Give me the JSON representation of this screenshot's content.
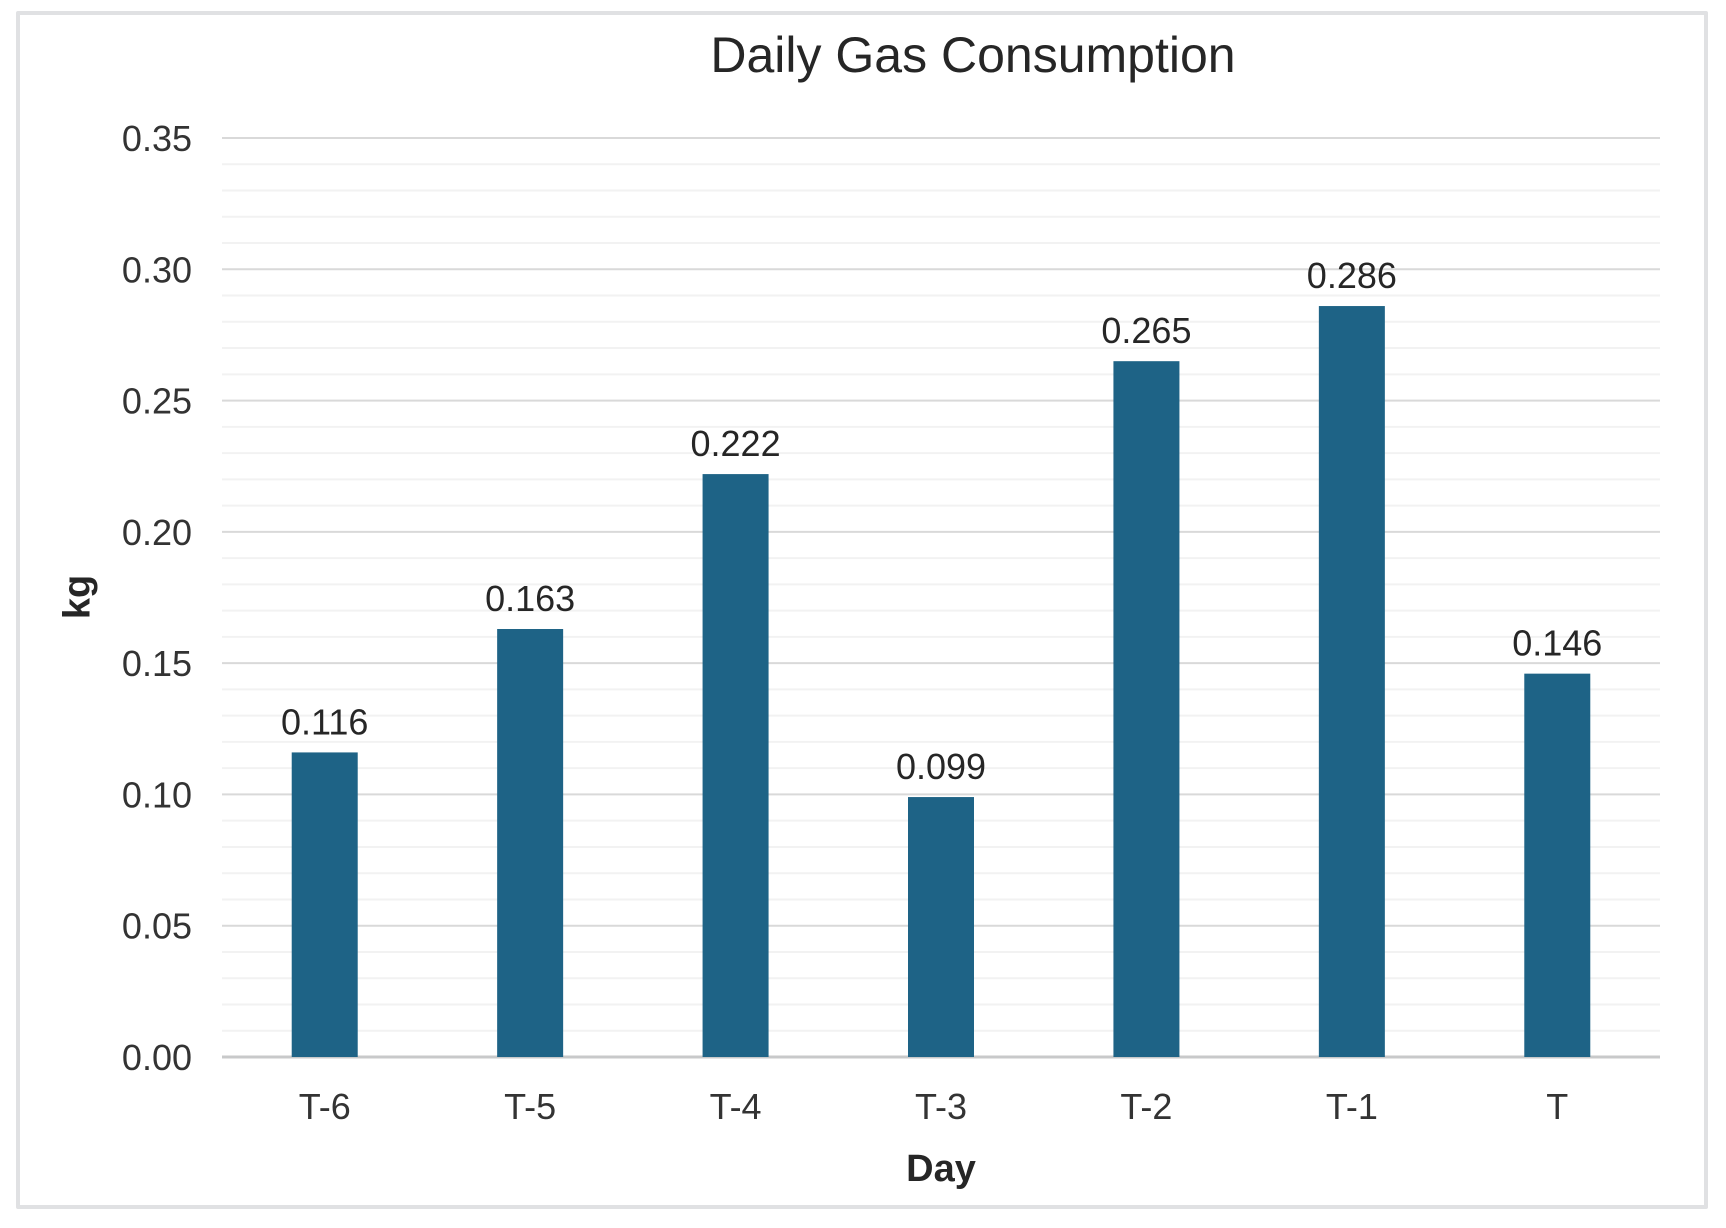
{
  "chart_data": {
    "type": "bar",
    "title": "Daily Gas Consumption",
    "xlabel": "Day",
    "ylabel": "kg",
    "categories": [
      "T-6",
      "T-5",
      "T-4",
      "T-3",
      "T-2",
      "T-1",
      "T"
    ],
    "values": [
      0.116,
      0.163,
      0.222,
      0.099,
      0.265,
      0.286,
      0.146
    ],
    "data_labels": [
      "0.116",
      "0.163",
      "0.222",
      "0.099",
      "0.265",
      "0.286",
      "0.146"
    ],
    "ylim": [
      0,
      0.35
    ],
    "y_major_unit": 0.05,
    "y_minor_unit": 0.01,
    "y_tick_labels": [
      "0.00",
      "0.05",
      "0.10",
      "0.15",
      "0.20",
      "0.25",
      "0.30",
      "0.35"
    ],
    "grid": true,
    "legend": "none"
  },
  "colors": {
    "bar": "#1E6386",
    "major_grid": "#d9d9d9",
    "minor_grid": "#f2f2f2",
    "axis_line": "#c8c9ca",
    "text_dark": "#262626",
    "tick_text": "#333333",
    "frame_border": "#e0e1e3",
    "background": "#ffffff"
  }
}
